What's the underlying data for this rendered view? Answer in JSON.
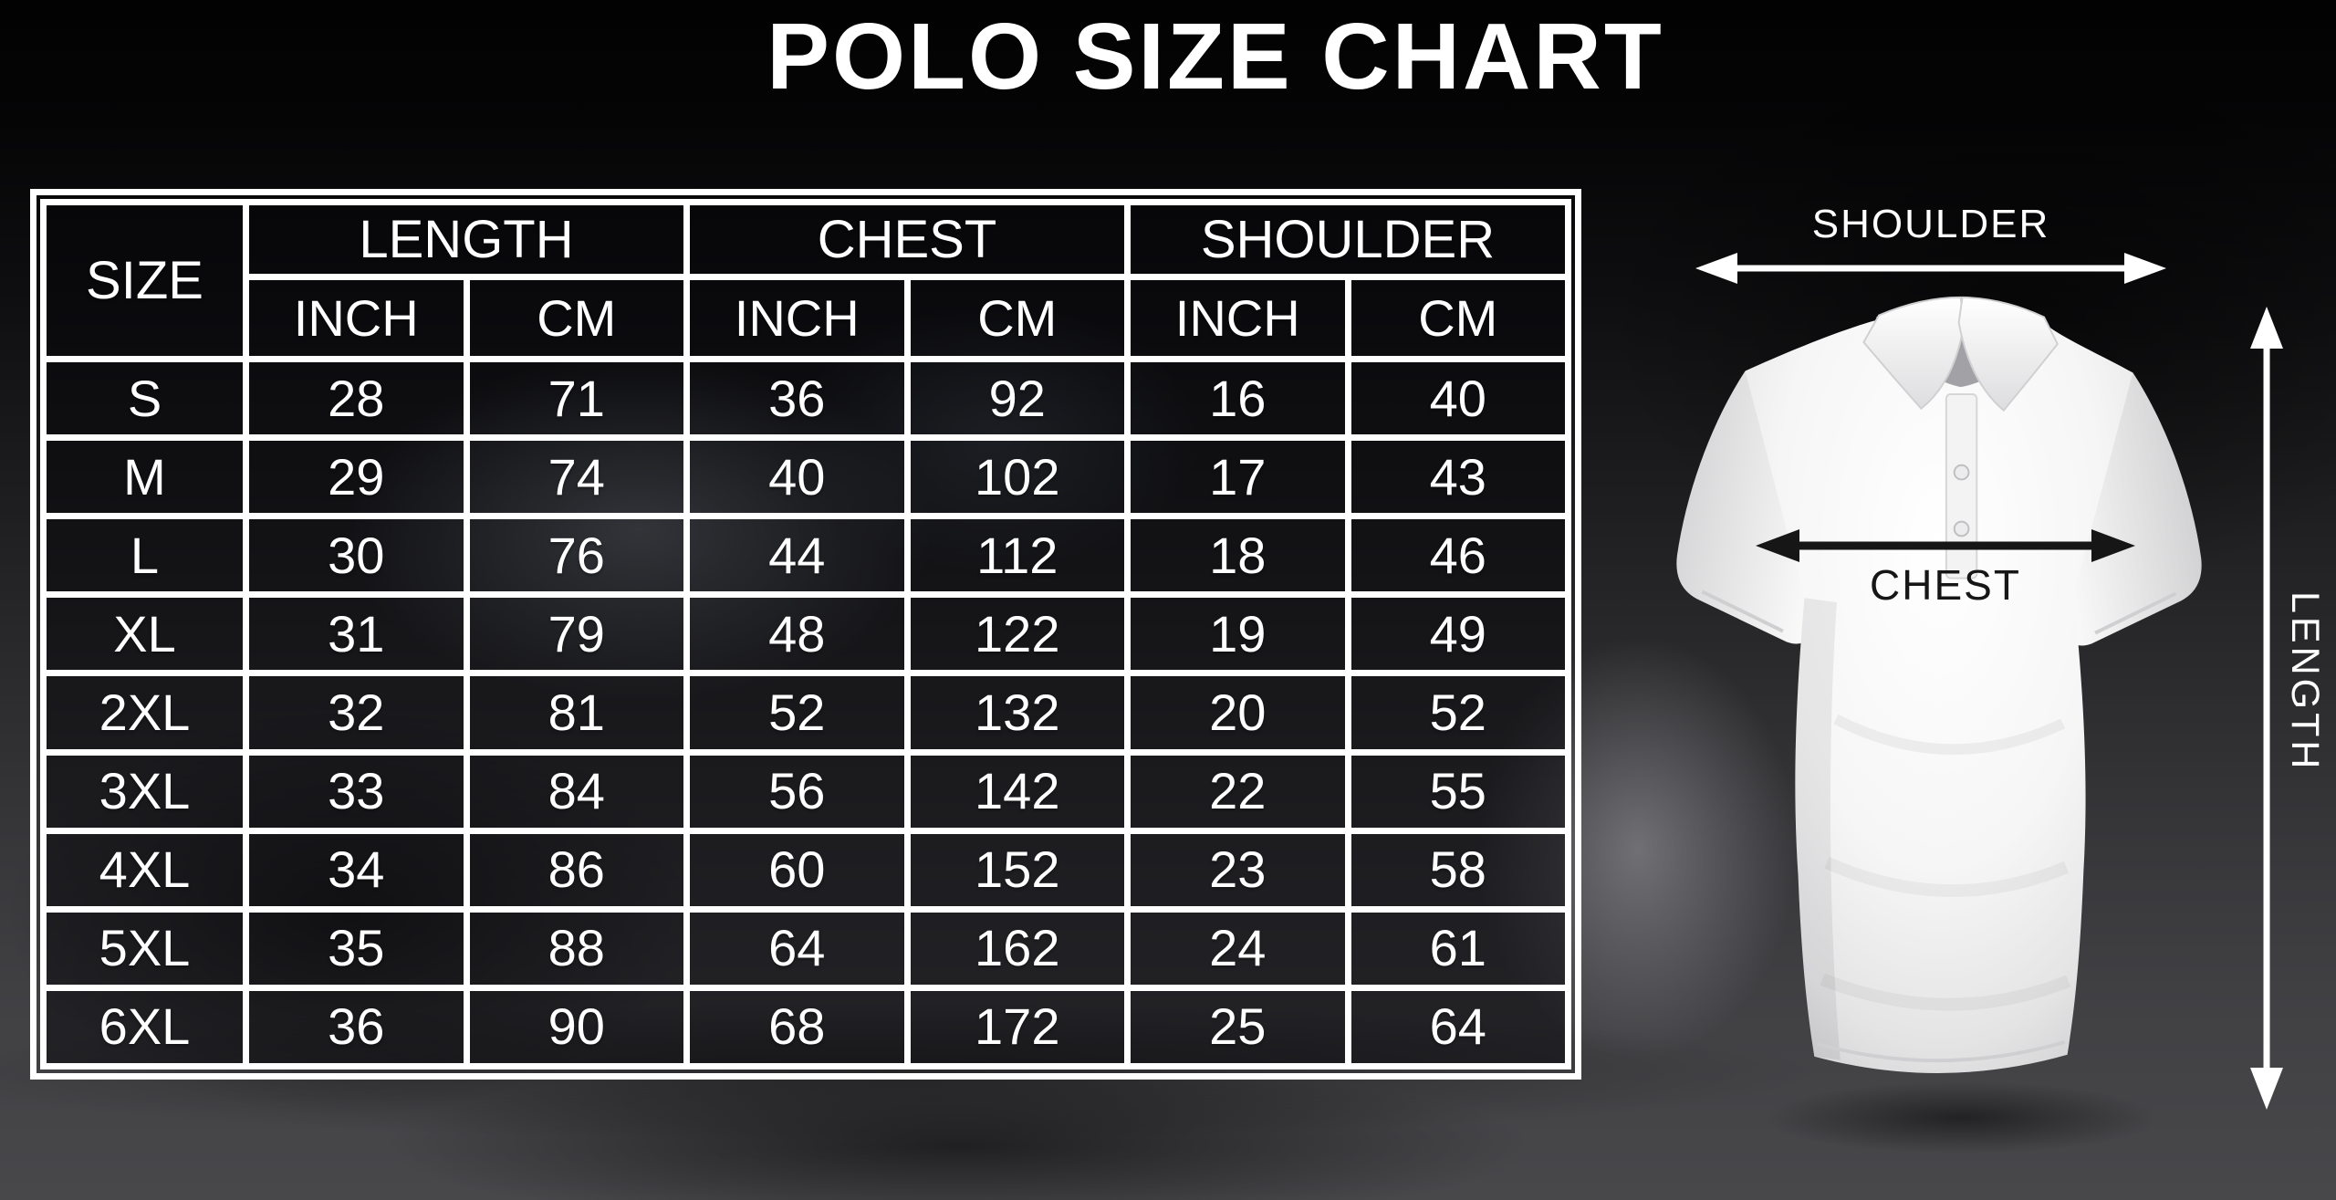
{
  "title": "POLO SIZE CHART",
  "chart_data": {
    "type": "table",
    "title": "POLO SIZE CHART",
    "column_groups": [
      {
        "label": "SIZE",
        "span": 1
      },
      {
        "label": "LENGTH",
        "span": 2
      },
      {
        "label": "CHEST",
        "span": 2
      },
      {
        "label": "SHOULDER",
        "span": 2
      }
    ],
    "unit_row": [
      "INCH",
      "CM",
      "INCH",
      "CM",
      "INCH",
      "CM"
    ],
    "rows": [
      [
        "S",
        28,
        71,
        36,
        92,
        16,
        40
      ],
      [
        "M",
        29,
        74,
        40,
        102,
        17,
        43
      ],
      [
        "L",
        30,
        76,
        44,
        112,
        18,
        46
      ],
      [
        "XL",
        31,
        79,
        48,
        122,
        19,
        49
      ],
      [
        "2XL",
        32,
        81,
        52,
        132,
        20,
        52
      ],
      [
        "3XL",
        33,
        84,
        56,
        142,
        22,
        55
      ],
      [
        "4XL",
        34,
        86,
        60,
        152,
        23,
        58
      ],
      [
        "5XL",
        35,
        88,
        64,
        162,
        24,
        61
      ],
      [
        "6XL",
        36,
        90,
        68,
        172,
        25,
        64
      ]
    ]
  },
  "diagram": {
    "shoulder_label": "SHOULDER",
    "chest_label": "CHEST",
    "length_label": "LENGTH"
  },
  "colors": {
    "table_border": "#ffffff",
    "table_text": "#ffffff",
    "title_text": "#ffffff",
    "chest_label_text": "#161616",
    "background_base": "#000000",
    "floor_gray": "#48484b",
    "shirt_white": "#f6f6f6"
  }
}
